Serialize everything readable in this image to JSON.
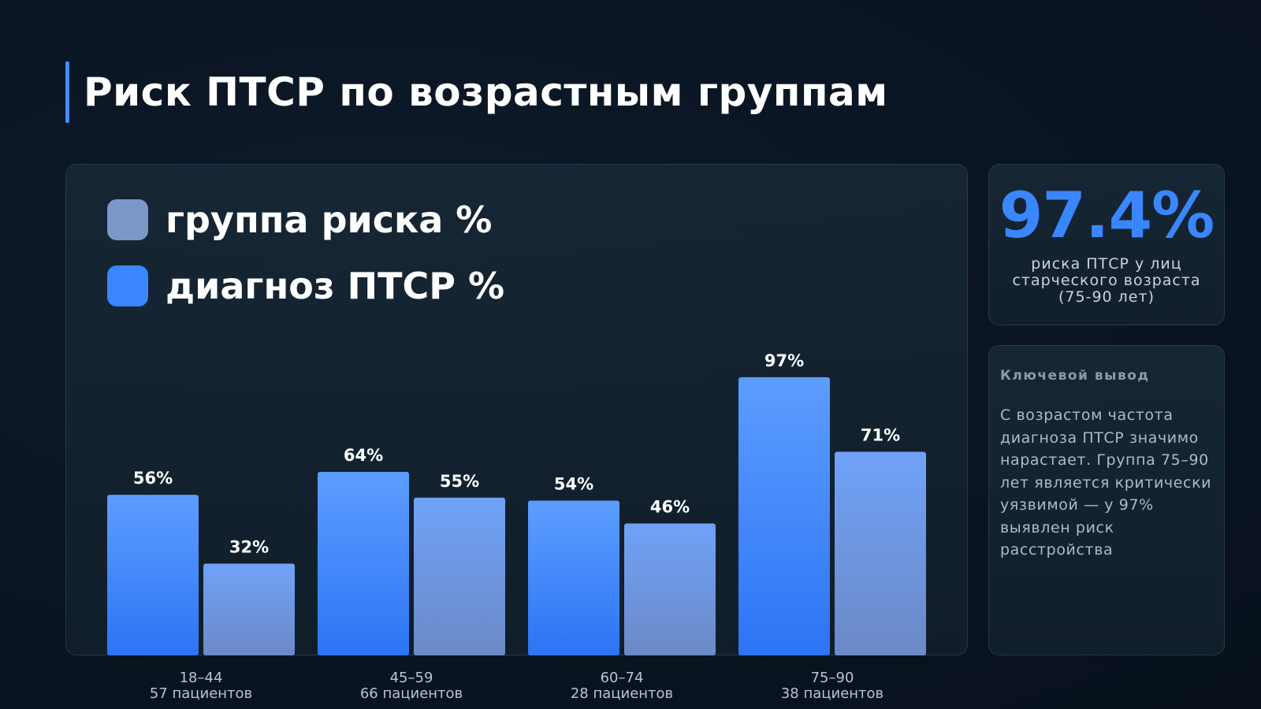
{
  "title": "Риск ПТСР по возрастным группам",
  "colors": {
    "accent": "#3a86ff",
    "risk_top": "#5c9dff",
    "risk_bottom": "#2d74f5",
    "ptsd_top": "#6fa2f8",
    "ptsd_bottom": "#6c89c6",
    "legend_risk": "#7d97c9",
    "legend_ptsd": "#3a86ff"
  },
  "chart_data": {
    "type": "bar",
    "categories": [
      "18–44",
      "45–59",
      "60–74",
      "75–90"
    ],
    "category_sublabels": [
      "57 пациентов",
      "66 пациентов",
      "28 пациентов",
      "38 пациентов"
    ],
    "series": [
      {
        "name": "группа риска %",
        "values": [
          56,
          64,
          54,
          97
        ],
        "labels": [
          "56%",
          "64%",
          "54%",
          "97%"
        ]
      },
      {
        "name": "диагноз ПТСР %",
        "values": [
          32,
          55,
          46,
          71
        ],
        "labels": [
          "32%",
          "55%",
          "46%",
          "71%"
        ]
      }
    ],
    "ylim": [
      0,
      100
    ],
    "grid": false,
    "legend": "top-left"
  },
  "stat": {
    "value": "97.4%",
    "caption": "риска ПТСР у лиц старческого возраста (75-90 лет)"
  },
  "note": {
    "title": "Ключевой вывод",
    "text": "С возрастом частота диагноза ПТСР значимо нарастает. Группа 75–90 лет является критически уязвимой — у 97% выявлен риск расстройства"
  }
}
